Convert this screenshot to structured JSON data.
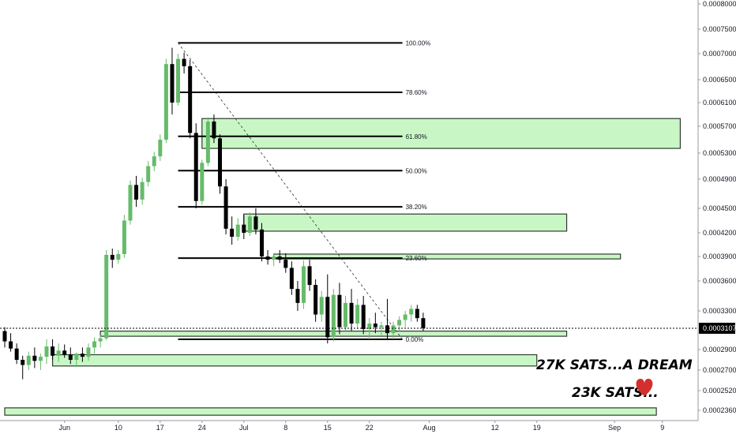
{
  "chart_data": {
    "type": "candlestick",
    "y_axis": {
      "range": [
        0.000223,
        0.000815
      ],
      "tick_labels": [
        "0.00080000",
        "0.00075000",
        "0.00070000",
        "0.00065000",
        "0.00061000",
        "0.00057000",
        "0.00053000",
        "0.00049000",
        "0.00045000",
        "0.00042000",
        "0.00039000",
        "0.00036000",
        "0.00033000",
        "0.00029000",
        "0.00027000",
        "0.00025200",
        "0.00023600"
      ],
      "tick_values": [
        0.0008,
        0.00075,
        0.0007,
        0.00065,
        0.00061,
        0.00057,
        0.00053,
        0.00049,
        0.00045,
        0.00042,
        0.00039,
        0.00036,
        0.00033,
        0.00029,
        0.00027,
        0.000252,
        0.000236
      ]
    },
    "x_axis": {
      "range": [
        "2019-05-22",
        "2019-09-12"
      ],
      "tick_labels": [
        "Jun",
        "10",
        "17",
        "24",
        "Jul",
        "8",
        "15",
        "22",
        "Aug",
        "12",
        "19",
        "Sep",
        "9"
      ],
      "tick_dates": [
        "2019-06-01",
        "2019-06-10",
        "2019-06-17",
        "2019-06-24",
        "2019-07-01",
        "2019-07-08",
        "2019-07-15",
        "2019-07-22",
        "2019-08-01",
        "2019-08-12",
        "2019-08-19",
        "2019-09-01",
        "2019-09-09"
      ]
    },
    "current_price": {
      "label": "0.00031078",
      "value": 0.00031078
    },
    "candles": [
      {
        "date": "2019-05-22",
        "o": 0.000308,
        "h": 0.000312,
        "l": 0.000292,
        "c": 0.000298
      },
      {
        "date": "2019-05-23",
        "o": 0.000298,
        "h": 0.000306,
        "l": 0.000288,
        "c": 0.000291
      },
      {
        "date": "2019-05-24",
        "o": 0.000291,
        "h": 0.000296,
        "l": 0.000276,
        "c": 0.00028
      },
      {
        "date": "2019-05-25",
        "o": 0.00028,
        "h": 0.000284,
        "l": 0.000262,
        "c": 0.000275
      },
      {
        "date": "2019-05-26",
        "o": 0.000275,
        "h": 0.000288,
        "l": 0.00027,
        "c": 0.000284
      },
      {
        "date": "2019-05-27",
        "o": 0.000284,
        "h": 0.000292,
        "l": 0.000272,
        "c": 0.000279
      },
      {
        "date": "2019-05-28",
        "o": 0.000279,
        "h": 0.000286,
        "l": 0.00027,
        "c": 0.000283
      },
      {
        "date": "2019-05-29",
        "o": 0.000283,
        "h": 0.0003,
        "l": 0.000276,
        "c": 0.000293
      },
      {
        "date": "2019-05-30",
        "o": 0.000293,
        "h": 0.0003,
        "l": 0.00028,
        "c": 0.000284
      },
      {
        "date": "2019-05-31",
        "o": 0.000284,
        "h": 0.000296,
        "l": 0.000278,
        "c": 0.000289
      },
      {
        "date": "2019-06-01",
        "o": 0.000289,
        "h": 0.000295,
        "l": 0.000282,
        "c": 0.000285
      },
      {
        "date": "2019-06-02",
        "o": 0.000285,
        "h": 0.000292,
        "l": 0.000276,
        "c": 0.00028
      },
      {
        "date": "2019-06-03",
        "o": 0.00028,
        "h": 0.000287,
        "l": 0.000273,
        "c": 0.000286
      },
      {
        "date": "2019-06-04",
        "o": 0.000286,
        "h": 0.000292,
        "l": 0.000278,
        "c": 0.000283
      },
      {
        "date": "2019-06-05",
        "o": 0.000283,
        "h": 0.000296,
        "l": 0.000279,
        "c": 0.000292
      },
      {
        "date": "2019-06-06",
        "o": 0.000292,
        "h": 0.000302,
        "l": 0.000286,
        "c": 0.000298
      },
      {
        "date": "2019-06-07",
        "o": 0.000298,
        "h": 0.000304,
        "l": 0.000292,
        "c": 0.000301
      },
      {
        "date": "2019-06-08",
        "o": 0.000301,
        "h": 0.000398,
        "l": 0.000299,
        "c": 0.000392
      },
      {
        "date": "2019-06-09",
        "o": 0.000392,
        "h": 0.0004,
        "l": 0.000376,
        "c": 0.000386
      },
      {
        "date": "2019-06-10",
        "o": 0.000386,
        "h": 0.000398,
        "l": 0.000381,
        "c": 0.000393
      },
      {
        "date": "2019-06-11",
        "o": 0.000393,
        "h": 0.000442,
        "l": 0.000388,
        "c": 0.000435
      },
      {
        "date": "2019-06-12",
        "o": 0.000435,
        "h": 0.000488,
        "l": 0.00043,
        "c": 0.000482
      },
      {
        "date": "2019-06-13",
        "o": 0.000482,
        "h": 0.000495,
        "l": 0.000452,
        "c": 0.000462
      },
      {
        "date": "2019-06-14",
        "o": 0.000462,
        "h": 0.000492,
        "l": 0.000455,
        "c": 0.000486
      },
      {
        "date": "2019-06-15",
        "o": 0.000486,
        "h": 0.000518,
        "l": 0.00048,
        "c": 0.00051
      },
      {
        "date": "2019-06-16",
        "o": 0.00051,
        "h": 0.000532,
        "l": 0.000502,
        "c": 0.000525
      },
      {
        "date": "2019-06-17",
        "o": 0.000525,
        "h": 0.000558,
        "l": 0.000518,
        "c": 0.00055
      },
      {
        "date": "2019-06-18",
        "o": 0.00055,
        "h": 0.00069,
        "l": 0.000545,
        "c": 0.00068
      },
      {
        "date": "2019-06-19",
        "o": 0.00068,
        "h": 0.000712,
        "l": 0.00059,
        "c": 0.00061
      },
      {
        "date": "2019-06-20",
        "o": 0.00061,
        "h": 0.0007,
        "l": 0.000605,
        "c": 0.00069
      },
      {
        "date": "2019-06-21",
        "o": 0.00069,
        "h": 0.000702,
        "l": 0.000662,
        "c": 0.000676
      },
      {
        "date": "2019-06-22",
        "o": 0.000676,
        "h": 0.000688,
        "l": 0.000552,
        "c": 0.00056
      },
      {
        "date": "2019-06-23",
        "o": 0.00056,
        "h": 0.000575,
        "l": 0.00045,
        "c": 0.00046
      },
      {
        "date": "2019-06-24",
        "o": 0.00046,
        "h": 0.00052,
        "l": 0.000455,
        "c": 0.000515
      },
      {
        "date": "2019-06-25",
        "o": 0.000515,
        "h": 0.000585,
        "l": 0.00051,
        "c": 0.000578
      },
      {
        "date": "2019-06-26",
        "o": 0.000578,
        "h": 0.00059,
        "l": 0.000545,
        "c": 0.000552
      },
      {
        "date": "2019-06-27",
        "o": 0.000552,
        "h": 0.000558,
        "l": 0.00047,
        "c": 0.00048
      },
      {
        "date": "2019-06-28",
        "o": 0.00048,
        "h": 0.00049,
        "l": 0.000418,
        "c": 0.000425
      },
      {
        "date": "2019-06-29",
        "o": 0.000425,
        "h": 0.00044,
        "l": 0.000405,
        "c": 0.000415
      },
      {
        "date": "2019-06-30",
        "o": 0.000415,
        "h": 0.000438,
        "l": 0.00041,
        "c": 0.00043
      },
      {
        "date": "2019-07-01",
        "o": 0.00043,
        "h": 0.000442,
        "l": 0.000412,
        "c": 0.00042
      },
      {
        "date": "2019-07-02",
        "o": 0.00042,
        "h": 0.000445,
        "l": 0.000416,
        "c": 0.00044
      },
      {
        "date": "2019-07-03",
        "o": 0.00044,
        "h": 0.00045,
        "l": 0.000418,
        "c": 0.000424
      },
      {
        "date": "2019-07-04",
        "o": 0.000424,
        "h": 0.000432,
        "l": 0.000384,
        "c": 0.00039
      },
      {
        "date": "2019-07-05",
        "o": 0.00039,
        "h": 0.000398,
        "l": 0.00038,
        "c": 0.000386
      },
      {
        "date": "2019-07-06",
        "o": 0.000386,
        "h": 0.000394,
        "l": 0.000378,
        "c": 0.00039
      },
      {
        "date": "2019-07-07",
        "o": 0.00039,
        "h": 0.000398,
        "l": 0.000382,
        "c": 0.000386
      },
      {
        "date": "2019-07-08",
        "o": 0.000386,
        "h": 0.000394,
        "l": 0.00037,
        "c": 0.000376
      },
      {
        "date": "2019-07-09",
        "o": 0.000376,
        "h": 0.000384,
        "l": 0.000346,
        "c": 0.000352
      },
      {
        "date": "2019-07-10",
        "o": 0.000352,
        "h": 0.00036,
        "l": 0.00033,
        "c": 0.000338
      },
      {
        "date": "2019-07-11",
        "o": 0.000338,
        "h": 0.000385,
        "l": 0.000332,
        "c": 0.000378
      },
      {
        "date": "2019-07-12",
        "o": 0.000378,
        "h": 0.000386,
        "l": 0.00035,
        "c": 0.000356
      },
      {
        "date": "2019-07-13",
        "o": 0.000356,
        "h": 0.000362,
        "l": 0.000318,
        "c": 0.000326
      },
      {
        "date": "2019-07-14",
        "o": 0.000326,
        "h": 0.00035,
        "l": 0.000318,
        "c": 0.000344
      },
      {
        "date": "2019-07-15",
        "o": 0.000344,
        "h": 0.000368,
        "l": 0.000296,
        "c": 0.000302
      },
      {
        "date": "2019-07-16",
        "o": 0.000302,
        "h": 0.000352,
        "l": 0.000298,
        "c": 0.000346
      },
      {
        "date": "2019-07-17",
        "o": 0.000346,
        "h": 0.000358,
        "l": 0.000305,
        "c": 0.000312
      },
      {
        "date": "2019-07-18",
        "o": 0.000312,
        "h": 0.000345,
        "l": 0.000308,
        "c": 0.000338
      },
      {
        "date": "2019-07-19",
        "o": 0.000338,
        "h": 0.000352,
        "l": 0.000308,
        "c": 0.000316
      },
      {
        "date": "2019-07-20",
        "o": 0.000316,
        "h": 0.000342,
        "l": 0.00031,
        "c": 0.000336
      },
      {
        "date": "2019-07-21",
        "o": 0.000336,
        "h": 0.000345,
        "l": 0.000305,
        "c": 0.00031
      },
      {
        "date": "2019-07-22",
        "o": 0.00031,
        "h": 0.000322,
        "l": 0.0003,
        "c": 0.000316
      },
      {
        "date": "2019-07-23",
        "o": 0.000316,
        "h": 0.000328,
        "l": 0.000306,
        "c": 0.000312
      },
      {
        "date": "2019-07-24",
        "o": 0.000312,
        "h": 0.000318,
        "l": 0.000304,
        "c": 0.000314
      },
      {
        "date": "2019-07-25",
        "o": 0.000314,
        "h": 0.000342,
        "l": 0.0003,
        "c": 0.000306
      },
      {
        "date": "2019-07-26",
        "o": 0.000306,
        "h": 0.000318,
        "l": 0.0003,
        "c": 0.000314
      },
      {
        "date": "2019-07-27",
        "o": 0.000314,
        "h": 0.000324,
        "l": 0.000308,
        "c": 0.00032
      },
      {
        "date": "2019-07-28",
        "o": 0.00032,
        "h": 0.00033,
        "l": 0.000312,
        "c": 0.000326
      },
      {
        "date": "2019-07-29",
        "o": 0.000326,
        "h": 0.000336,
        "l": 0.000318,
        "c": 0.000332
      },
      {
        "date": "2019-07-30",
        "o": 0.000332,
        "h": 0.000336,
        "l": 0.000318,
        "c": 0.000322
      },
      {
        "date": "2019-07-31",
        "o": 0.000322,
        "h": 0.000328,
        "l": 0.000308,
        "c": 0.000311
      }
    ],
    "fib_levels": [
      {
        "label": "100.00%",
        "value": 0.000722
      },
      {
        "label": "78.60%",
        "value": 0.000628
      },
      {
        "label": "61.80%",
        "value": 0.000555
      },
      {
        "label": "50.00%",
        "value": 0.000503
      },
      {
        "label": "38.20%",
        "value": 0.000452
      },
      {
        "label": "23.60%",
        "value": 0.000388
      },
      {
        "label": "0.00%",
        "value": 0.0003
      }
    ],
    "fib_range": {
      "start": "2019-06-20",
      "end": "2019-07-27"
    },
    "zones": [
      {
        "name": "zone-61",
        "x_start": "2019-06-24",
        "x_end": "2019-09-12",
        "y_low": 0.000537,
        "y_high": 0.000583
      },
      {
        "name": "zone-42",
        "x_start": "2019-07-01",
        "x_end": "2019-08-24",
        "y_low": 0.000422,
        "y_high": 0.000443
      },
      {
        "name": "zone-39",
        "x_start": "2019-07-06",
        "x_end": "2019-09-02",
        "y_low": 0.000387,
        "y_high": 0.000393
      },
      {
        "name": "zone-30",
        "x_start": "2019-06-07",
        "x_end": "2019-08-24",
        "y_low": 0.000303,
        "y_high": 0.000308
      },
      {
        "name": "zone-27",
        "x_start": "2019-05-30",
        "x_end": "2019-08-19",
        "y_low": 0.000274,
        "y_high": 0.000285
      },
      {
        "name": "zone-23",
        "x_start": "2019-05-22",
        "x_end": "2019-09-08",
        "y_low": 0.000232,
        "y_high": 0.000238
      }
    ],
    "annotations": [
      "27K SATS...A DREAM",
      "23K SATS..."
    ],
    "colors": {
      "up": "#66bb6a",
      "down": "#000000",
      "zone_fill": "#c8f7c5",
      "zone_stroke": "#2e3b2e",
      "grid": "#ffffff",
      "heart": "#d32f2f"
    }
  }
}
